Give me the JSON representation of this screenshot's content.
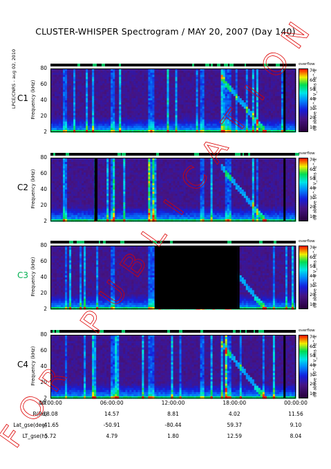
{
  "title": "CLUSTER-WHISPER Spectrogram / MAY 20, 2007 (Day 140)",
  "credit": "LPCE/CNRS - aug 02, 2010",
  "watermark": "FOR PUBLICATION",
  "colors": {
    "accent_green": "#00c060",
    "watermark": "#dd0000",
    "text": "#000000"
  },
  "chart_data": [
    {
      "type": "heatmap",
      "panel": "C1",
      "label_color": "#000000",
      "ylabel": "Frequency (kHz)",
      "yticks": [
        "80",
        "60",
        "40",
        "20",
        "2"
      ],
      "ylim": [
        2,
        80
      ],
      "colorbar_label": "dB above 10^-8 V_rms Hz^-1",
      "colorbar_ticks": [
        "70",
        "60",
        "50",
        "40",
        "30",
        "20",
        "10"
      ],
      "colorbar_top": "overflow",
      "black_intervals": [
        [
          22.8,
          23.0
        ]
      ]
    },
    {
      "type": "heatmap",
      "panel": "C2",
      "label_color": "#000000",
      "ylabel": "Frequency (kHz)",
      "yticks": [
        "80",
        "60",
        "40",
        "20",
        "2"
      ],
      "ylim": [
        2,
        80
      ],
      "colorbar_label": "dB above 10^-8 V_rms Hz^-1",
      "colorbar_ticks": [
        "70",
        "60",
        "50",
        "40",
        "30",
        "20",
        "10"
      ],
      "colorbar_top": "overflow",
      "black_intervals": [
        [
          4.3,
          4.6
        ],
        [
          22.8,
          23.0
        ]
      ]
    },
    {
      "type": "heatmap",
      "panel": "C3",
      "label_color": "#00b050",
      "ylabel": "Frequency (kHz)",
      "yticks": [
        "80",
        "60",
        "40",
        "20",
        "2"
      ],
      "ylim": [
        2,
        80
      ],
      "colorbar_label": "dB above 10^-8 V_rms Hz^-1",
      "colorbar_ticks": [
        "70",
        "60",
        "50",
        "40",
        "30",
        "20",
        "10"
      ],
      "colorbar_top": "overflow",
      "black_intervals": [
        [
          10.2,
          18.3
        ],
        [
          18.3,
          18.5
        ]
      ]
    },
    {
      "type": "heatmap",
      "panel": "C4",
      "label_color": "#000000",
      "ylabel": "Frequency (kHz)",
      "yticks": [
        "80",
        "60",
        "40",
        "20",
        "2"
      ],
      "ylim": [
        2,
        80
      ],
      "colorbar_label": "dB above 10^-8 V_rms Hz^-1",
      "colorbar_ticks": [
        "70",
        "60",
        "50",
        "40",
        "30",
        "20",
        "10"
      ],
      "colorbar_top": "overflow",
      "black_intervals": [
        [
          22.8,
          23.0
        ]
      ]
    }
  ],
  "xaxis": {
    "ticks": [
      "00:00:00",
      "06:00:00",
      "12:00:00",
      "18:00:00",
      "00:00:00"
    ]
  },
  "orbit_rows": [
    {
      "label": "UT",
      "values": [
        "00:00:00",
        "06:00:00",
        "12:00:00",
        "18:00:00",
        "00:00:00"
      ]
    },
    {
      "label": "R(Re)",
      "values": [
        "18.08",
        "14.57",
        "8.81",
        "4.02",
        "11.56"
      ]
    },
    {
      "label": "Lat_gse(deg)",
      "values": [
        "-41.65",
        "-50.91",
        "-80.44",
        "59.37",
        "9.10"
      ]
    },
    {
      "label": "LT_gse(h)",
      "values": [
        "5.72",
        "4.79",
        "1.80",
        "12.59",
        "8.04"
      ]
    }
  ]
}
